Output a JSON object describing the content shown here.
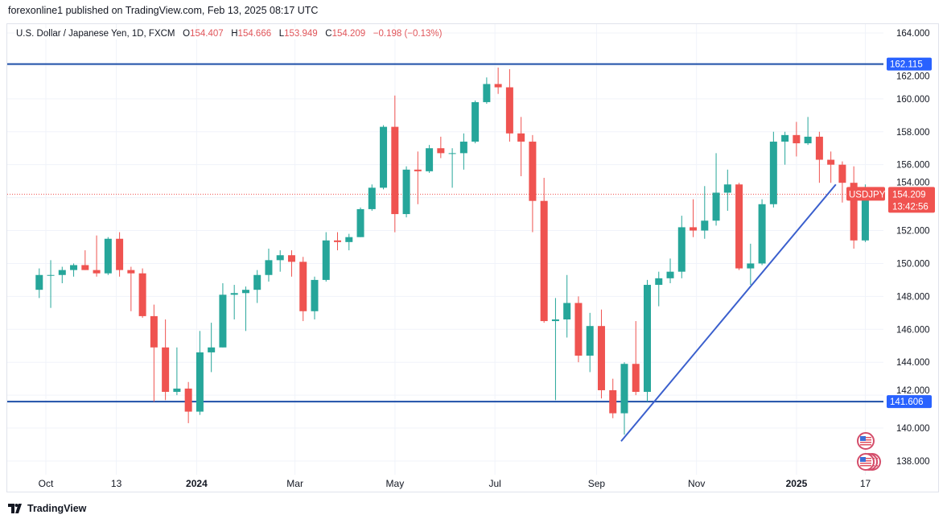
{
  "header": {
    "published": "forexonline1 published on TradingView.com, Feb 13, 2025 08:17 UTC"
  },
  "legend": {
    "symbol": "U.S. Dollar / Japanese Yen, 1D, FXCM",
    "o_label": "O",
    "o": "154.407",
    "h_label": "H",
    "h": "154.666",
    "l_label": "L",
    "l": "153.949",
    "c_label": "C",
    "c": "154.209",
    "change": "−0.198 (−0.13%)"
  },
  "footer": {
    "brand": "TradingView"
  },
  "colors": {
    "up": "#26a69a",
    "down": "#ef5350",
    "line": "#2962ff",
    "hline": "#1e4fa8",
    "label_blue": "#2962ff",
    "label_red": "#f05350"
  },
  "chart_data": {
    "type": "candlestick",
    "symbol_tag": "USDJPY",
    "last_price": "154.209",
    "countdown": "13:42:56",
    "ylim": [
      137,
      165
    ],
    "y_ticks": [
      "138.000",
      "140.000",
      "142.000",
      "144.000",
      "146.000",
      "148.000",
      "150.000",
      "152.000",
      "154.000",
      "156.000",
      "158.000",
      "160.000",
      "162.000",
      "164.000"
    ],
    "x_ticks": [
      {
        "label": "Oct",
        "date": "2023-10-01"
      },
      {
        "label": "13",
        "date": "2023-11-13"
      },
      {
        "label": "2024",
        "date": "2024-01-01"
      },
      {
        "label": "Mar",
        "date": "2024-03-01"
      },
      {
        "label": "May",
        "date": "2024-05-01"
      },
      {
        "label": "Jul",
        "date": "2024-07-01"
      },
      {
        "label": "Sep",
        "date": "2024-09-01"
      },
      {
        "label": "Nov",
        "date": "2024-11-01"
      },
      {
        "label": "2025",
        "date": "2025-01-01"
      },
      {
        "label": "17",
        "date": "2025-02-12"
      }
    ],
    "horizontal_lines": [
      {
        "price": 162.115,
        "label": "162.115"
      },
      {
        "price": 141.606,
        "label": "141.606"
      }
    ],
    "trendline": {
      "from": {
        "date": "2024-09-16",
        "price": 139.2
      },
      "to": {
        "date": "2025-01-25",
        "price": 154.8
      }
    },
    "candles_columns": [
      "week",
      "open",
      "high",
      "low",
      "close"
    ],
    "candles": [
      [
        "2023-09-25",
        148.4,
        149.7,
        147.9,
        149.3
      ],
      [
        "2023-10-02",
        149.3,
        150.2,
        147.3,
        149.3
      ],
      [
        "2023-10-09",
        149.3,
        149.8,
        148.8,
        149.6
      ],
      [
        "2023-10-16",
        149.6,
        150.0,
        149.2,
        149.9
      ],
      [
        "2023-10-23",
        149.9,
        150.8,
        149.6,
        149.6
      ],
      [
        "2023-10-30",
        149.6,
        151.7,
        149.2,
        149.4
      ],
      [
        "2023-11-06",
        149.4,
        151.6,
        149.3,
        151.5
      ],
      [
        "2023-11-13",
        151.5,
        151.9,
        149.2,
        149.6
      ],
      [
        "2023-11-20",
        149.6,
        149.8,
        147.1,
        149.4
      ],
      [
        "2023-11-27",
        149.4,
        149.7,
        146.7,
        146.8
      ],
      [
        "2023-12-04",
        146.8,
        147.5,
        141.6,
        144.9
      ],
      [
        "2023-12-11",
        144.9,
        146.6,
        141.7,
        142.2
      ],
      [
        "2023-12-18",
        142.2,
        144.9,
        142.0,
        142.4
      ],
      [
        "2023-12-25",
        142.4,
        142.8,
        140.3,
        141.0
      ],
      [
        "2024-01-01",
        141.0,
        145.9,
        140.8,
        144.6
      ],
      [
        "2024-01-08",
        144.6,
        146.4,
        143.4,
        144.9
      ],
      [
        "2024-01-15",
        144.9,
        148.8,
        144.9,
        148.1
      ],
      [
        "2024-01-22",
        148.1,
        148.7,
        146.6,
        148.2
      ],
      [
        "2024-01-29",
        148.2,
        148.6,
        145.9,
        148.4
      ],
      [
        "2024-02-05",
        148.4,
        149.6,
        147.6,
        149.3
      ],
      [
        "2024-02-12",
        149.3,
        150.9,
        148.9,
        150.2
      ],
      [
        "2024-02-19",
        150.2,
        150.8,
        149.5,
        150.5
      ],
      [
        "2024-02-26",
        150.5,
        150.8,
        149.2,
        150.1
      ],
      [
        "2024-03-04",
        150.1,
        150.4,
        146.5,
        147.1
      ],
      [
        "2024-03-11",
        147.1,
        149.2,
        146.6,
        149.0
      ],
      [
        "2024-03-18",
        149.0,
        151.9,
        148.9,
        151.4
      ],
      [
        "2024-03-25",
        151.4,
        151.9,
        150.8,
        151.3
      ],
      [
        "2024-04-01",
        151.3,
        151.8,
        150.8,
        151.6
      ],
      [
        "2024-04-08",
        151.6,
        153.4,
        151.6,
        153.3
      ],
      [
        "2024-04-15",
        153.3,
        154.8,
        153.2,
        154.6
      ],
      [
        "2024-04-22",
        154.6,
        158.4,
        154.5,
        158.3
      ],
      [
        "2024-04-29",
        158.3,
        160.2,
        151.9,
        153.0
      ],
      [
        "2024-05-06",
        153.0,
        155.9,
        152.8,
        155.7
      ],
      [
        "2024-05-13",
        155.7,
        156.8,
        153.6,
        155.6
      ],
      [
        "2024-05-20",
        155.6,
        157.2,
        155.5,
        157.0
      ],
      [
        "2024-05-27",
        157.0,
        157.7,
        156.4,
        156.7
      ],
      [
        "2024-06-03",
        156.7,
        157.0,
        154.6,
        156.7
      ],
      [
        "2024-06-10",
        156.7,
        157.9,
        155.7,
        157.4
      ],
      [
        "2024-06-17",
        157.4,
        159.9,
        157.3,
        159.8
      ],
      [
        "2024-06-24",
        159.8,
        161.3,
        159.7,
        160.9
      ],
      [
        "2024-07-01",
        160.9,
        161.9,
        160.3,
        160.7
      ],
      [
        "2024-07-08",
        160.7,
        161.8,
        157.4,
        157.9
      ],
      [
        "2024-07-15",
        157.9,
        158.9,
        155.3,
        157.4
      ],
      [
        "2024-07-22",
        157.4,
        157.8,
        151.9,
        153.8
      ],
      [
        "2024-07-29",
        153.8,
        155.2,
        146.4,
        146.5
      ],
      [
        "2024-08-05",
        146.5,
        147.9,
        141.7,
        146.6
      ],
      [
        "2024-08-12",
        146.6,
        149.3,
        145.5,
        147.6
      ],
      [
        "2024-08-19",
        147.6,
        148.0,
        144.0,
        144.4
      ],
      [
        "2024-08-26",
        144.4,
        147.0,
        143.4,
        146.2
      ],
      [
        "2024-09-02",
        146.2,
        147.2,
        141.8,
        142.3
      ],
      [
        "2024-09-09",
        142.3,
        143.0,
        140.6,
        140.9
      ],
      [
        "2024-09-16",
        140.9,
        144.0,
        139.6,
        143.9
      ],
      [
        "2024-09-23",
        143.9,
        146.5,
        142.0,
        142.2
      ],
      [
        "2024-09-30",
        142.2,
        149.0,
        141.6,
        148.7
      ],
      [
        "2024-10-07",
        148.7,
        149.5,
        147.4,
        149.1
      ],
      [
        "2024-10-14",
        149.1,
        150.3,
        148.8,
        149.5
      ],
      [
        "2024-10-21",
        149.5,
        152.9,
        149.1,
        152.2
      ],
      [
        "2024-10-28",
        152.2,
        153.9,
        151.6,
        152.0
      ],
      [
        "2024-11-04",
        152.0,
        154.7,
        151.5,
        152.6
      ],
      [
        "2024-11-11",
        152.6,
        156.7,
        152.3,
        154.3
      ],
      [
        "2024-11-18",
        154.3,
        155.7,
        153.2,
        154.8
      ],
      [
        "2024-11-25",
        154.8,
        154.9,
        149.6,
        149.7
      ],
      [
        "2024-12-02",
        149.7,
        151.2,
        148.7,
        150.0
      ],
      [
        "2024-12-09",
        150.0,
        153.9,
        149.9,
        153.6
      ],
      [
        "2024-12-16",
        153.6,
        158.0,
        153.4,
        157.4
      ],
      [
        "2024-12-23",
        157.4,
        158.0,
        156.0,
        157.8
      ],
      [
        "2024-12-30",
        157.8,
        158.6,
        156.5,
        157.3
      ],
      [
        "2025-01-06",
        157.3,
        158.9,
        157.2,
        157.7
      ],
      [
        "2025-01-13",
        157.7,
        158.0,
        154.9,
        156.3
      ],
      [
        "2025-01-20",
        156.3,
        156.8,
        154.9,
        156.0
      ],
      [
        "2025-01-27",
        156.0,
        156.2,
        153.7,
        154.9
      ],
      [
        "2025-02-03",
        154.9,
        155.9,
        150.9,
        151.4
      ],
      [
        "2025-02-10",
        151.4,
        154.8,
        151.3,
        154.2
      ]
    ],
    "event_icons": [
      "us-flag-icon",
      "us-flag-stack-icon"
    ]
  }
}
